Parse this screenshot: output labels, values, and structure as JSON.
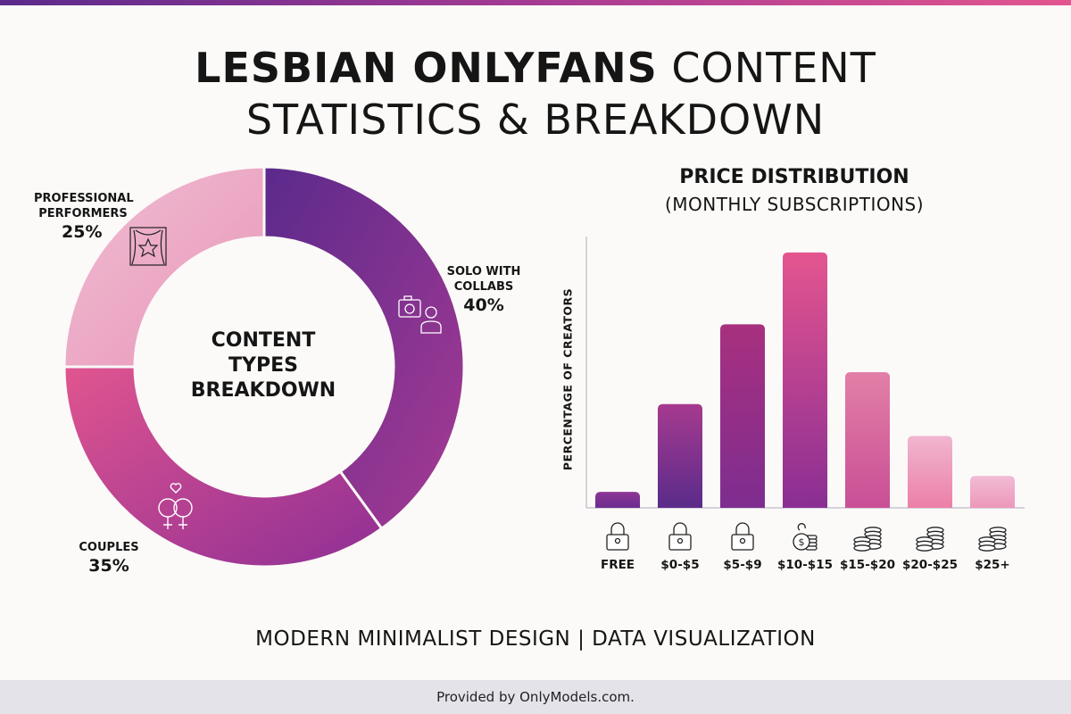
{
  "title": {
    "bold": "LESBIAN ONLYFANS",
    "regular": "CONTENT",
    "line2": "STATISTICS & BREAKDOWN"
  },
  "colors": {
    "accent_purple": "#5b2a8c",
    "accent_pink": "#e2558f",
    "footer_bg": "#e5e3ea"
  },
  "chart_data": [
    {
      "type": "pie",
      "style": "donut",
      "title": "CONTENT TYPES BREAKDOWN",
      "slices": [
        {
          "label": "SOLO WITH COLLABS",
          "value": 40,
          "display": "40%",
          "icon": "camera-person-icon",
          "colors": [
            "#5b2a8c",
            "#a63a93"
          ]
        },
        {
          "label": "COUPLES",
          "value": 35,
          "display": "35%",
          "icon": "female-couple-heart-icon",
          "colors": [
            "#e0558f",
            "#8f2f95"
          ]
        },
        {
          "label": "PROFESSIONAL PERFORMERS",
          "value": 25,
          "display": "25%",
          "icon": "stage-star-icon",
          "colors": [
            "#f0bdd3",
            "#e896b8"
          ]
        }
      ]
    },
    {
      "type": "bar",
      "title": "PRICE DISTRIBUTION",
      "subtitle": "(MONTHLY SUBSCRIPTIONS)",
      "xlabel": "",
      "ylabel": "PERCENTAGE OF CREATORS",
      "ylim": [
        0,
        34
      ],
      "grid": false,
      "categories": [
        "FREE",
        "$0-$5",
        "$5-$9",
        "$10-$15",
        "$15-$20",
        "$20-$25",
        "$25+"
      ],
      "values": [
        2,
        13,
        23,
        32,
        17,
        9,
        4
      ],
      "icons": [
        "lock-icon",
        "lock-icon",
        "lock-icon",
        "money-bag-coins-icon",
        "coin-stacks-icon",
        "coin-stacks-icon",
        "coin-stacks-icon"
      ],
      "bar_colors": [
        [
          "#8e3595",
          "#6a2d8f"
        ],
        [
          "#a63a8f",
          "#5a2b8a"
        ],
        [
          "#a8307f",
          "#7e2d90"
        ],
        [
          "#e4558f",
          "#8a2e93"
        ],
        [
          "#e27fa6",
          "#c94f96"
        ],
        [
          "#f0b6cf",
          "#ec7fa8"
        ],
        [
          "#f1bcd4",
          "#ee97ba"
        ]
      ]
    }
  ],
  "tagline": "MODERN MINIMALIST DESIGN | DATA VISUALIZATION",
  "footer": "Provided by OnlyModels.com."
}
